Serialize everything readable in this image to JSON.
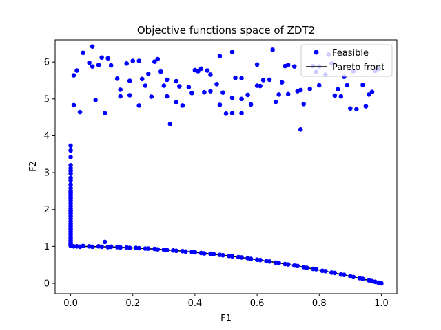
{
  "chart_data": {
    "type": "scatter",
    "title": "Objective functions space of ZDT2",
    "xlabel": "F1",
    "ylabel": "F2",
    "xlim": [
      -0.05,
      1.05
    ],
    "ylim": [
      -0.28,
      6.6
    ],
    "x_ticks": [
      {
        "value": 0.0,
        "label": "0.0"
      },
      {
        "value": 0.2,
        "label": "0.2"
      },
      {
        "value": 0.4,
        "label": "0.4"
      },
      {
        "value": 0.6,
        "label": "0.6"
      },
      {
        "value": 0.8,
        "label": "0.8"
      },
      {
        "value": 1.0,
        "label": "1.0"
      }
    ],
    "y_ticks": [
      {
        "value": 0,
        "label": "0"
      },
      {
        "value": 1,
        "label": "1"
      },
      {
        "value": 2,
        "label": "2"
      },
      {
        "value": 3,
        "label": "3"
      },
      {
        "value": 4,
        "label": "4"
      },
      {
        "value": 5,
        "label": "5"
      },
      {
        "value": 6,
        "label": "6"
      }
    ],
    "grid": false,
    "legend_position": "top-right",
    "series": [
      {
        "name": "Feasible",
        "kind": "scatter",
        "color": "#0000ff",
        "points": [
          [
            0.01,
            5.64
          ],
          [
            0.02,
            5.77
          ],
          [
            0.04,
            6.25
          ],
          [
            0.06,
            5.98
          ],
          [
            0.07,
            6.42
          ],
          [
            0.07,
            5.88
          ],
          [
            0.09,
            5.92
          ],
          [
            0.1,
            6.12
          ],
          [
            0.12,
            6.1
          ],
          [
            0.13,
            5.91
          ],
          [
            0.08,
            4.97
          ],
          [
            0.15,
            5.55
          ],
          [
            0.16,
            5.25
          ],
          [
            0.16,
            5.07
          ],
          [
            0.18,
            5.96
          ],
          [
            0.19,
            5.1
          ],
          [
            0.19,
            5.49
          ],
          [
            0.2,
            6.03
          ],
          [
            0.22,
            6.03
          ],
          [
            0.23,
            5.54
          ],
          [
            0.24,
            5.36
          ],
          [
            0.25,
            5.68
          ],
          [
            0.27,
            6.01
          ],
          [
            0.28,
            6.08
          ],
          [
            0.29,
            5.74
          ],
          [
            0.3,
            5.36
          ],
          [
            0.31,
            5.07
          ],
          [
            0.34,
            5.48
          ],
          [
            0.35,
            5.34
          ],
          [
            0.38,
            5.32
          ],
          [
            0.39,
            5.16
          ],
          [
            0.4,
            5.78
          ],
          [
            0.41,
            5.75
          ],
          [
            0.42,
            5.82
          ],
          [
            0.44,
            5.77
          ],
          [
            0.45,
            5.66
          ],
          [
            0.45,
            5.21
          ],
          [
            0.47,
            5.4
          ],
          [
            0.48,
            4.84
          ],
          [
            0.49,
            5.17
          ],
          [
            0.48,
            6.16
          ],
          [
            0.52,
            6.27
          ],
          [
            0.52,
            5.03
          ],
          [
            0.53,
            5.57
          ],
          [
            0.55,
            5.56
          ],
          [
            0.55,
            5.0
          ],
          [
            0.57,
            5.11
          ],
          [
            0.58,
            4.85
          ],
          [
            0.6,
            5.93
          ],
          [
            0.61,
            5.35
          ],
          [
            0.62,
            5.51
          ],
          [
            0.64,
            5.52
          ],
          [
            0.65,
            6.33
          ],
          [
            0.67,
            5.12
          ],
          [
            0.68,
            5.45
          ],
          [
            0.69,
            5.89
          ],
          [
            0.7,
            5.92
          ],
          [
            0.7,
            5.13
          ],
          [
            0.72,
            5.88
          ],
          [
            0.73,
            5.21
          ],
          [
            0.74,
            5.24
          ],
          [
            0.75,
            4.86
          ],
          [
            0.77,
            5.27
          ],
          [
            0.78,
            5.89
          ],
          [
            0.79,
            5.73
          ],
          [
            0.8,
            5.37
          ],
          [
            0.82,
            5.66
          ],
          [
            0.83,
            6.2
          ],
          [
            0.84,
            5.96
          ],
          [
            0.85,
            5.09
          ],
          [
            0.86,
            5.26
          ],
          [
            0.87,
            5.07
          ],
          [
            0.88,
            5.6
          ],
          [
            0.89,
            5.37
          ],
          [
            0.9,
            4.74
          ],
          [
            0.91,
            5.75
          ],
          [
            0.92,
            4.72
          ],
          [
            0.94,
            5.38
          ],
          [
            0.95,
            4.8
          ],
          [
            0.96,
            5.12
          ],
          [
            0.97,
            5.19
          ],
          [
            0.98,
            5.76
          ],
          [
            0.99,
            5.82
          ],
          [
            0.26,
            5.06
          ],
          [
            0.11,
            4.61
          ],
          [
            0.03,
            4.64
          ],
          [
            0.01,
            4.83
          ],
          [
            0.32,
            4.32
          ],
          [
            0.74,
            4.17
          ],
          [
            0.52,
            4.61
          ],
          [
            0.36,
            4.82
          ],
          [
            0.66,
            4.92
          ],
          [
            0.55,
            4.61
          ],
          [
            0.5,
            4.6
          ],
          [
            0.22,
            4.82
          ],
          [
            0.34,
            4.91
          ],
          [
            0.43,
            5.18
          ],
          [
            0.31,
            5.52
          ],
          [
            0.8,
            5.88
          ],
          [
            0.6,
            5.36
          ],
          [
            0.0,
            3.73
          ],
          [
            0.0,
            3.6
          ],
          [
            0.0,
            3.42
          ],
          [
            0.0,
            3.2
          ],
          [
            0.0,
            3.12
          ],
          [
            0.0,
            3.05
          ],
          [
            0.0,
            2.98
          ],
          [
            0.0,
            2.86
          ],
          [
            0.0,
            2.78
          ],
          [
            0.0,
            2.68
          ],
          [
            0.0,
            2.58
          ],
          [
            0.0,
            2.5
          ],
          [
            0.0,
            2.44
          ],
          [
            0.0,
            2.38
          ],
          [
            0.0,
            2.31
          ],
          [
            0.0,
            2.24
          ],
          [
            0.0,
            2.17
          ],
          [
            0.0,
            2.1
          ],
          [
            0.0,
            2.03
          ],
          [
            0.0,
            1.96
          ],
          [
            0.0,
            1.89
          ],
          [
            0.0,
            1.82
          ],
          [
            0.0,
            1.75
          ],
          [
            0.0,
            1.68
          ],
          [
            0.0,
            1.61
          ],
          [
            0.0,
            1.54
          ],
          [
            0.0,
            1.47
          ],
          [
            0.0,
            1.4
          ],
          [
            0.0,
            1.34
          ],
          [
            0.0,
            1.28
          ],
          [
            0.0,
            1.22
          ],
          [
            0.0,
            1.16
          ],
          [
            0.0,
            1.11
          ],
          [
            0.0,
            1.06
          ],
          [
            0.0,
            1.02
          ],
          [
            0.01,
            1.0
          ],
          [
            0.02,
            1.0
          ],
          [
            0.03,
            0.99
          ],
          [
            0.04,
            1.01
          ],
          [
            0.06,
            1.0
          ],
          [
            0.07,
            0.99
          ],
          [
            0.09,
            1.0
          ],
          [
            0.1,
            0.99
          ],
          [
            0.11,
            1.12
          ],
          [
            0.12,
            0.98
          ],
          [
            0.13,
            0.99
          ],
          [
            0.15,
            0.98
          ],
          [
            0.16,
            0.97
          ],
          [
            0.18,
            0.97
          ],
          [
            0.19,
            0.96
          ],
          [
            0.21,
            0.96
          ],
          [
            0.22,
            0.95
          ],
          [
            0.24,
            0.94
          ],
          [
            0.25,
            0.94
          ],
          [
            0.27,
            0.93
          ],
          [
            0.28,
            0.92
          ],
          [
            0.3,
            0.91
          ],
          [
            0.31,
            0.9
          ],
          [
            0.33,
            0.89
          ],
          [
            0.34,
            0.88
          ],
          [
            0.36,
            0.87
          ],
          [
            0.37,
            0.86
          ],
          [
            0.39,
            0.85
          ],
          [
            0.4,
            0.84
          ],
          [
            0.42,
            0.82
          ],
          [
            0.43,
            0.81
          ],
          [
            0.45,
            0.8
          ],
          [
            0.46,
            0.79
          ],
          [
            0.48,
            0.77
          ],
          [
            0.49,
            0.76
          ],
          [
            0.51,
            0.74
          ],
          [
            0.52,
            0.73
          ],
          [
            0.54,
            0.71
          ],
          [
            0.55,
            0.7
          ],
          [
            0.57,
            0.68
          ],
          [
            0.58,
            0.66
          ],
          [
            0.6,
            0.64
          ],
          [
            0.61,
            0.63
          ],
          [
            0.63,
            0.6
          ],
          [
            0.64,
            0.59
          ],
          [
            0.66,
            0.56
          ],
          [
            0.67,
            0.55
          ],
          [
            0.69,
            0.52
          ],
          [
            0.7,
            0.51
          ],
          [
            0.72,
            0.48
          ],
          [
            0.73,
            0.47
          ],
          [
            0.75,
            0.44
          ],
          [
            0.76,
            0.42
          ],
          [
            0.78,
            0.39
          ],
          [
            0.79,
            0.38
          ],
          [
            0.81,
            0.34
          ],
          [
            0.82,
            0.33
          ],
          [
            0.84,
            0.29
          ],
          [
            0.85,
            0.28
          ],
          [
            0.87,
            0.24
          ],
          [
            0.88,
            0.23
          ],
          [
            0.9,
            0.19
          ],
          [
            0.91,
            0.17
          ],
          [
            0.93,
            0.14
          ],
          [
            0.94,
            0.12
          ],
          [
            0.96,
            0.08
          ],
          [
            0.97,
            0.06
          ],
          [
            0.98,
            0.04
          ],
          [
            0.99,
            0.02
          ],
          [
            1.0,
            0.0
          ]
        ]
      },
      {
        "name": "Pareto front",
        "kind": "line",
        "color": "#000000",
        "function": "1 - x^2",
        "x_range": [
          0,
          1
        ]
      }
    ]
  }
}
